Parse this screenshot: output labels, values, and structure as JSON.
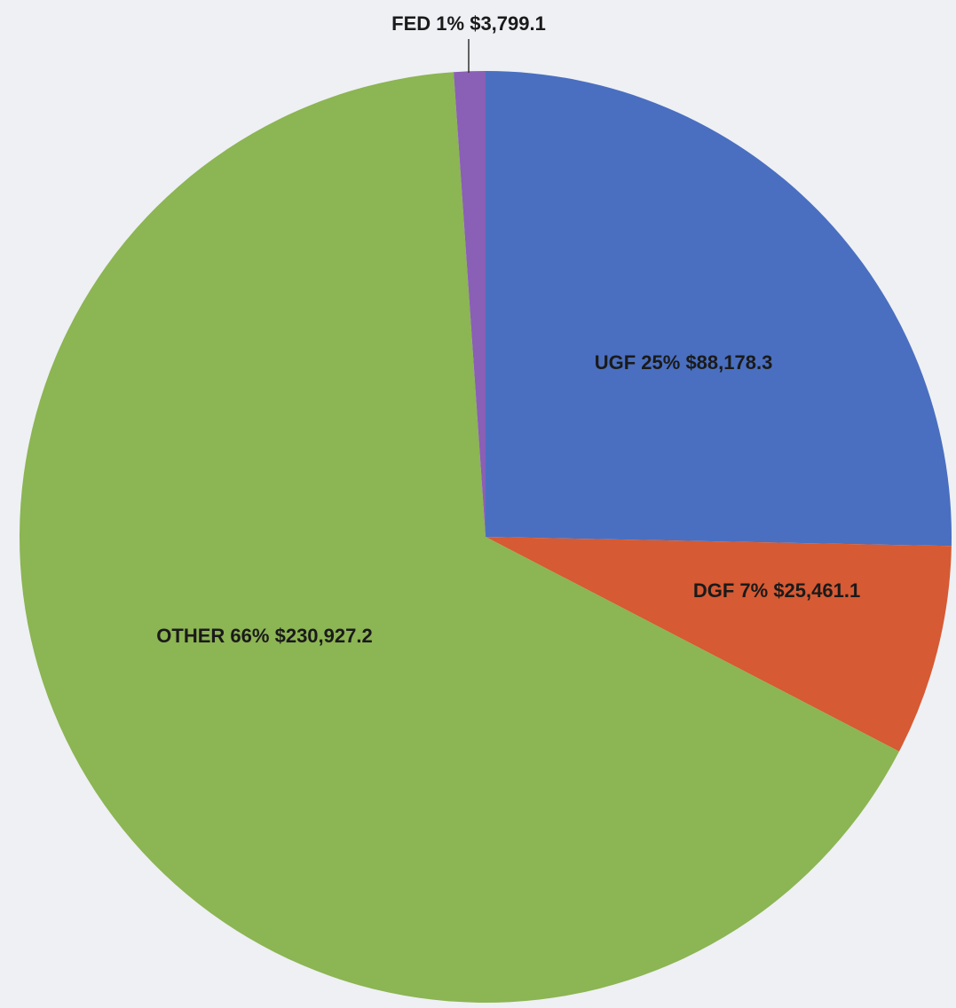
{
  "chart_data": {
    "type": "pie",
    "categories": [
      "UGF",
      "DGF",
      "OTHER",
      "FED"
    ],
    "values": [
      88178.3,
      25461.1,
      230927.2,
      3799.1
    ],
    "value_labels": [
      "$88,178.3",
      "$25,461.1",
      "$230,927.2",
      "$3,799.1"
    ],
    "percents": [
      25,
      7,
      66,
      1
    ],
    "percent_labels": [
      "25%",
      "7%",
      "66%",
      "1%"
    ],
    "colors": [
      "#4a6fc0",
      "#d65a33",
      "#8cb553",
      "#8a5fb6"
    ]
  }
}
